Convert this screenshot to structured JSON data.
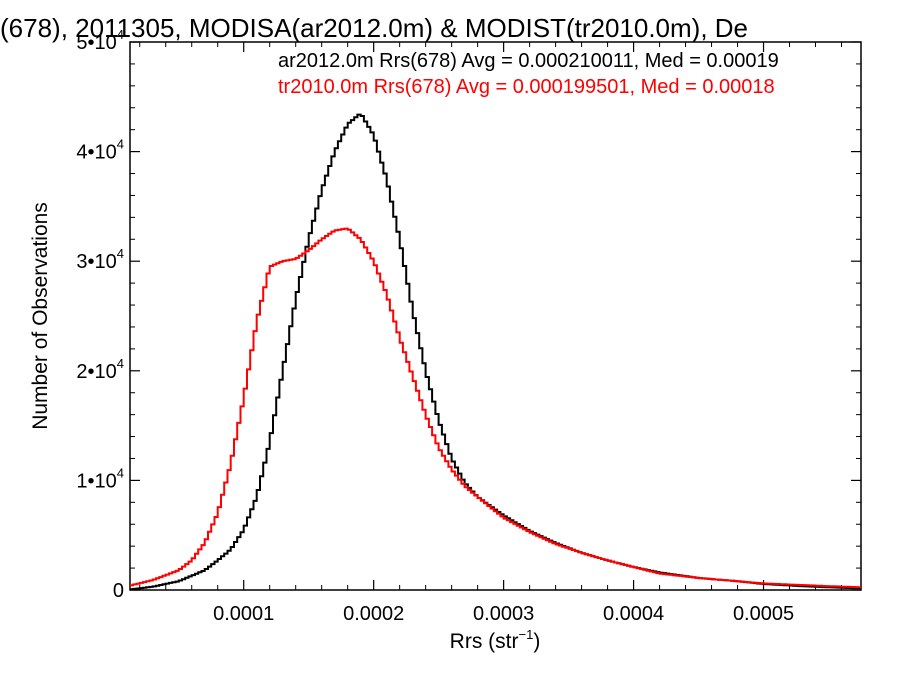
{
  "chart_data": {
    "type": "line",
    "title": "(678), 2011305, MODISA(ar2012.0m) & MODIST(tr2010.0m), De",
    "xlabel_main": "Rrs (str",
    "xlabel_sup": "−1",
    "xlabel_end": ")",
    "ylabel": "Number of Observations",
    "xlim": [
      1.25e-05,
      0.000575
    ],
    "ylim": [
      0,
      50000
    ],
    "x_ticks": [
      {
        "value": 0.0001,
        "label": "0.0001"
      },
      {
        "value": 0.0002,
        "label": "0.0002"
      },
      {
        "value": 0.0003,
        "label": "0.0003"
      },
      {
        "value": 0.0004,
        "label": "0.0004"
      },
      {
        "value": 0.0005,
        "label": "0.0005"
      }
    ],
    "y_ticks": [
      {
        "value": 0,
        "base": "0",
        "exp": ""
      },
      {
        "value": 10000,
        "base": "1•10",
        "exp": "4"
      },
      {
        "value": 20000,
        "base": "2•10",
        "exp": "4"
      },
      {
        "value": 30000,
        "base": "3•10",
        "exp": "4"
      },
      {
        "value": 40000,
        "base": "4•10",
        "exp": "4"
      },
      {
        "value": 50000,
        "base": "5•10",
        "exp": "4"
      }
    ],
    "legend": [
      {
        "text": "ar2012.0m Rrs(678) Avg = 0.000210011, Med = 0.00019",
        "color": "#000000"
      },
      {
        "text": "tr2010.0m Rrs(678) Avg = 0.000199501, Med = 0.00018",
        "color": "#ff0000"
      }
    ],
    "series": [
      {
        "color": "#000000",
        "x": [
          1.25e-05,
          3e-05,
          5e-05,
          7e-05,
          8e-05,
          9e-05,
          0.0001,
          0.00011,
          0.00012,
          0.00013,
          0.00014,
          0.00015,
          0.00016,
          0.00017,
          0.00018,
          0.00019,
          0.0002,
          0.00021,
          0.00022,
          0.00023,
          0.00024,
          0.00025,
          0.00026,
          0.00027,
          0.00028,
          0.0003,
          0.00032,
          0.00034,
          0.00036,
          0.00038,
          0.0004,
          0.00042,
          0.00045,
          0.00048,
          0.0005,
          0.00053,
          0.00055,
          0.000575
        ],
        "y": [
          50,
          300,
          800,
          1800,
          2700,
          3700,
          5500,
          8500,
          13500,
          20000,
          26500,
          32000,
          36500,
          40000,
          42500,
          43500,
          41500,
          37500,
          32000,
          25500,
          20000,
          15500,
          12000,
          9800,
          8500,
          6800,
          5400,
          4300,
          3400,
          2700,
          2100,
          1600,
          1100,
          800,
          550,
          350,
          250,
          150
        ]
      },
      {
        "color": "#ff0000",
        "x": [
          1.25e-05,
          3e-05,
          5e-05,
          6e-05,
          7e-05,
          8e-05,
          9e-05,
          0.0001,
          0.00011,
          0.00012,
          0.00013,
          0.00014,
          0.00015,
          0.00016,
          0.00017,
          0.00018,
          0.00019,
          0.0002,
          0.00021,
          0.00022,
          0.00023,
          0.00024,
          0.00025,
          0.00026,
          0.00027,
          0.00028,
          0.0003,
          0.00032,
          0.00034,
          0.00036,
          0.00038,
          0.0004,
          0.00042,
          0.00045,
          0.00048,
          0.0005,
          0.00053,
          0.00055,
          0.000575
        ],
        "y": [
          400,
          900,
          1800,
          2700,
          4300,
          7000,
          11500,
          17500,
          24500,
          29500,
          30000,
          30200,
          31000,
          32000,
          32800,
          33000,
          32000,
          30000,
          27000,
          23000,
          19500,
          16000,
          13000,
          11000,
          9500,
          8500,
          6600,
          5300,
          4200,
          3400,
          2700,
          2100,
          1500,
          1100,
          800,
          600,
          450,
          350,
          250
        ]
      }
    ]
  }
}
